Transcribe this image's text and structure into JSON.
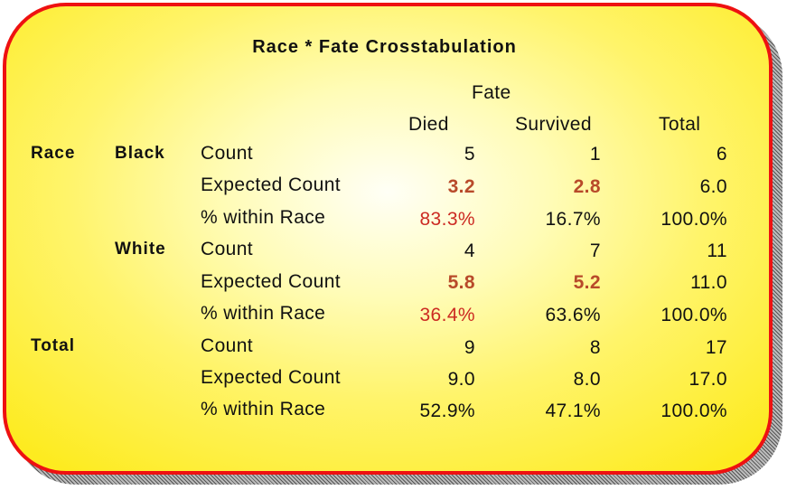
{
  "title": "Race * Fate Crosstabulation",
  "header": {
    "fate": "Fate",
    "died": "Died",
    "survived": "Survived",
    "total": "Total"
  },
  "row_labels": {
    "race": "Race",
    "black": "Black",
    "white": "White",
    "total": "Total"
  },
  "stats": {
    "count": "Count",
    "expected": "Expected Count",
    "pct": "% within Race"
  },
  "rows": [
    {
      "died": "5",
      "survived": "1",
      "total": "6"
    },
    {
      "died": "3.2",
      "survived": "2.8",
      "total": "6.0"
    },
    {
      "died": "83.3%",
      "survived": "16.7%",
      "total": "100.0%"
    },
    {
      "died": "4",
      "survived": "7",
      "total": "11"
    },
    {
      "died": "5.8",
      "survived": "5.2",
      "total": "11.0"
    },
    {
      "died": "36.4%",
      "survived": "63.6%",
      "total": "100.0%"
    },
    {
      "died": "9",
      "survived": "8",
      "total": "17"
    },
    {
      "died": "9.0",
      "survived": "8.0",
      "total": "17.0"
    },
    {
      "died": "52.9%",
      "survived": "47.1%",
      "total": "100.0%"
    }
  ],
  "colors": {
    "border": "#ee1111",
    "highlight": "#b84a2a",
    "percent_highlight": "#cc2a22",
    "panel_yellow": "#fdeb20"
  }
}
